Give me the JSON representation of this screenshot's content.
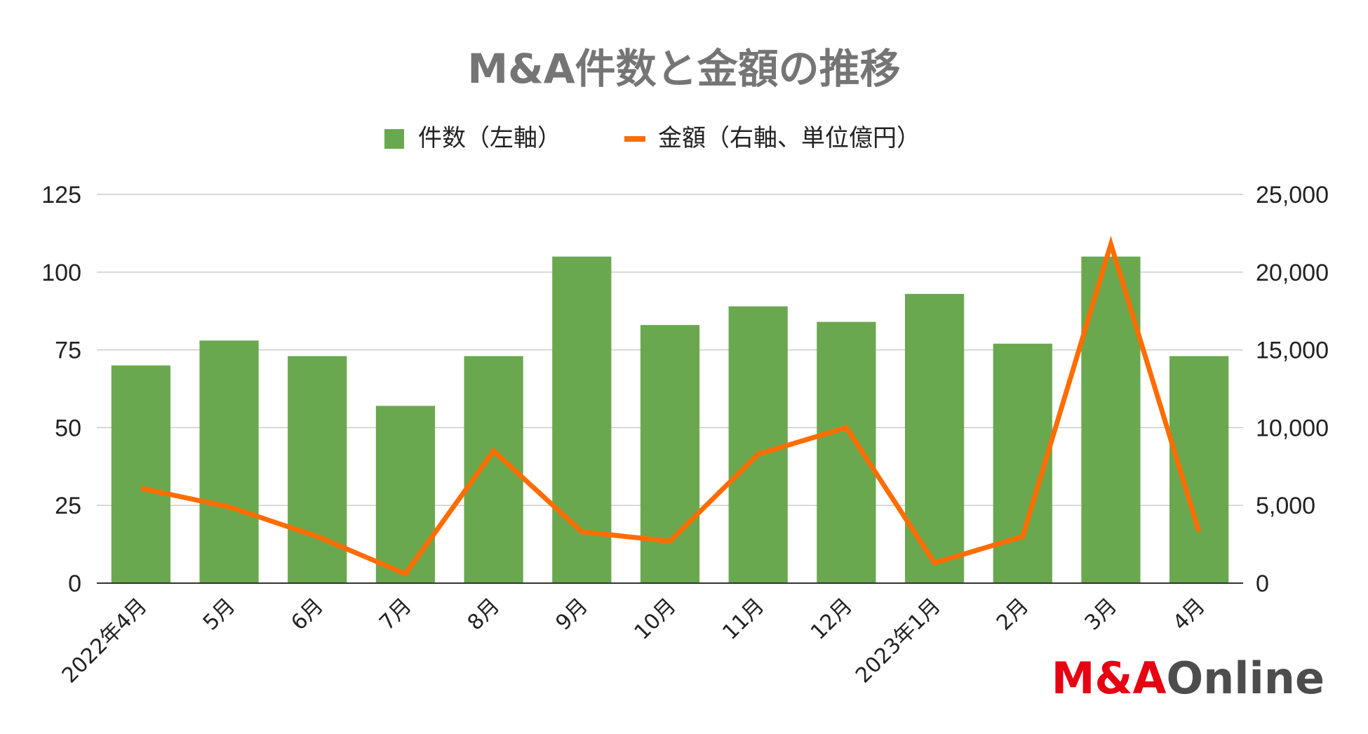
{
  "chart_data": {
    "type": "bar",
    "title": "M&A件数と金額の推移",
    "categories": [
      "2022年4月",
      "5月",
      "6月",
      "7月",
      "8月",
      "9月",
      "10月",
      "11月",
      "12月",
      "2023年1月",
      "2月",
      "3月",
      "4月"
    ],
    "series": [
      {
        "name": "件数（左軸）",
        "type": "bar",
        "axis": "left",
        "color": "#6aa84f",
        "values": [
          70,
          78,
          73,
          57,
          73,
          105,
          83,
          89,
          84,
          93,
          77,
          105,
          73
        ]
      },
      {
        "name": "金額（右軸、単位億円）",
        "type": "line",
        "axis": "right",
        "color": "#ff6d00",
        "values": [
          6100,
          4900,
          3000,
          600,
          8500,
          3300,
          2700,
          8300,
          10000,
          1300,
          3000,
          21800,
          3300
        ]
      }
    ],
    "y_left": {
      "ylim": [
        0,
        125
      ],
      "ticks": [
        "0",
        "25",
        "50",
        "75",
        "100",
        "125"
      ]
    },
    "y_right": {
      "ylim": [
        0,
        25000
      ],
      "ticks": [
        "0",
        "5,000",
        "10,000",
        "15,000",
        "20,000",
        "25,000"
      ]
    },
    "grid": true,
    "legend_position": "top-center"
  },
  "logo": {
    "part1": "M&A",
    "part2": "Online"
  }
}
